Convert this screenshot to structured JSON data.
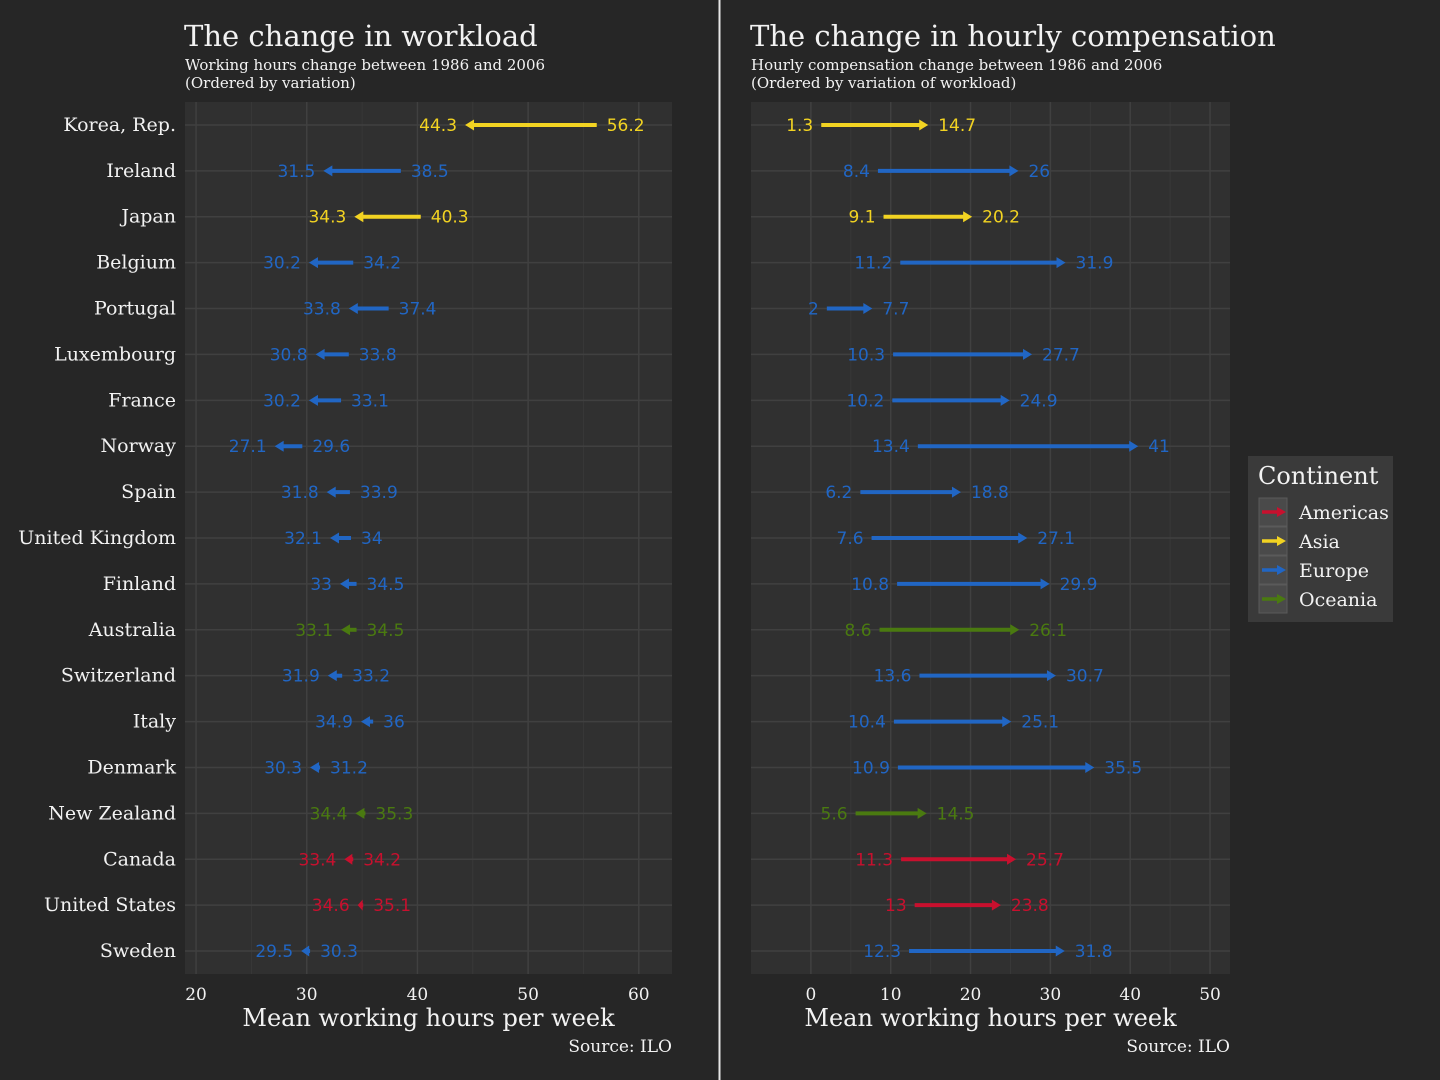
{
  "chart_data": [
    {
      "type": "arrow-dumbbell",
      "title": "The change in workload",
      "subtitle_lines": [
        "Working hours change between 1986 and 2006",
        "(Ordered by variation)"
      ],
      "xlabel": "Mean working hours per week",
      "caption": "Source: ILO",
      "xlim": [
        19,
        63
      ],
      "x_ticks": [
        20,
        30,
        40,
        50,
        60
      ],
      "grid": true,
      "countries": [
        "Korea, Rep.",
        "Ireland",
        "Japan",
        "Belgium",
        "Portugal",
        "Luxembourg",
        "France",
        "Norway",
        "Spain",
        "United Kingdom",
        "Finland",
        "Australia",
        "Switzerland",
        "Italy",
        "Denmark",
        "New Zealand",
        "Canada",
        "United States",
        "Sweden"
      ],
      "continents": [
        "Asia",
        "Europe",
        "Asia",
        "Europe",
        "Europe",
        "Europe",
        "Europe",
        "Europe",
        "Europe",
        "Europe",
        "Europe",
        "Oceania",
        "Europe",
        "Europe",
        "Europe",
        "Oceania",
        "Americas",
        "Americas",
        "Europe"
      ],
      "start": [
        56.2,
        38.5,
        40.3,
        34.2,
        37.4,
        33.8,
        33.1,
        29.6,
        33.9,
        34,
        34.5,
        34.5,
        33.2,
        36,
        31.2,
        35.3,
        34.2,
        35.1,
        30.3
      ],
      "end": [
        44.3,
        31.5,
        34.3,
        30.2,
        33.8,
        30.8,
        30.2,
        27.1,
        31.8,
        32.1,
        33,
        33.1,
        31.9,
        34.9,
        30.3,
        34.4,
        33.4,
        34.6,
        29.5
      ],
      "start_labels": [
        "56.2",
        "38.5",
        "40.3",
        "34.2",
        "37.4",
        "33.8",
        "33.1",
        "29.6",
        "33.9",
        "34",
        "34.5",
        "34.5",
        "33.2",
        "36",
        "31.2",
        "35.3",
        "34.2",
        "35.1",
        "30.3"
      ],
      "end_labels": [
        "44.3",
        "31.5",
        "34.3",
        "30.2",
        "33.8",
        "30.8",
        "30.2",
        "27.1",
        "31.8",
        "32.1",
        "33",
        "33.1",
        "31.9",
        "34.9",
        "30.3",
        "34.4",
        "33.4",
        "34.6",
        "29.5"
      ]
    },
    {
      "type": "arrow-dumbbell",
      "title": "The change in hourly compensation",
      "subtitle_lines": [
        "Hourly compensation change between 1986 and 2006",
        "(Ordered by variation of workload)"
      ],
      "xlabel": "Mean working hours per week",
      "caption": "Source: ILO",
      "xlim": [
        -7.5,
        52.5
      ],
      "x_ticks": [
        0,
        10,
        20,
        30,
        40,
        50
      ],
      "grid": true,
      "countries": [
        "Korea, Rep.",
        "Ireland",
        "Japan",
        "Belgium",
        "Portugal",
        "Luxembourg",
        "France",
        "Norway",
        "Spain",
        "United Kingdom",
        "Finland",
        "Australia",
        "Switzerland",
        "Italy",
        "Denmark",
        "New Zealand",
        "Canada",
        "United States",
        "Sweden"
      ],
      "continents": [
        "Asia",
        "Europe",
        "Asia",
        "Europe",
        "Europe",
        "Europe",
        "Europe",
        "Europe",
        "Europe",
        "Europe",
        "Europe",
        "Oceania",
        "Europe",
        "Europe",
        "Europe",
        "Oceania",
        "Americas",
        "Americas",
        "Europe"
      ],
      "start": [
        1.3,
        8.4,
        9.1,
        11.2,
        2,
        10.3,
        10.2,
        13.4,
        6.2,
        7.6,
        10.8,
        8.6,
        13.6,
        10.4,
        10.9,
        5.6,
        11.3,
        13,
        12.3
      ],
      "end": [
        14.7,
        26,
        20.2,
        31.9,
        7.7,
        27.7,
        24.9,
        41,
        18.8,
        27.1,
        29.9,
        26.1,
        30.7,
        25.1,
        35.5,
        14.5,
        25.7,
        23.8,
        31.8
      ],
      "start_labels": [
        "1.3",
        "8.4",
        "9.1",
        "11.2",
        "2",
        "10.3",
        "10.2",
        "13.4",
        "6.2",
        "7.6",
        "10.8",
        "8.6",
        "13.6",
        "10.4",
        "10.9",
        "5.6",
        "11.3",
        "13",
        "12.3"
      ],
      "end_labels": [
        "14.7",
        "26",
        "20.2",
        "31.9",
        "7.7",
        "27.7",
        "24.9",
        "41",
        "18.8",
        "27.1",
        "29.9",
        "26.1",
        "30.7",
        "25.1",
        "35.5",
        "14.5",
        "25.7",
        "23.8",
        "31.8"
      ]
    }
  ],
  "legend": {
    "title": "Continent",
    "placement": "right",
    "entries": [
      {
        "name": "Americas",
        "color": "#c8102e"
      },
      {
        "name": "Asia",
        "color": "#f2d322"
      },
      {
        "name": "Europe",
        "color": "#2166c4"
      },
      {
        "name": "Oceania",
        "color": "#4a7a10"
      }
    ]
  },
  "colors": {
    "background": "#262626",
    "panel": "#303030",
    "grid": "#3d3d3d",
    "text": "#f2f2f2",
    "legend_bg": "#3a3a3a"
  }
}
